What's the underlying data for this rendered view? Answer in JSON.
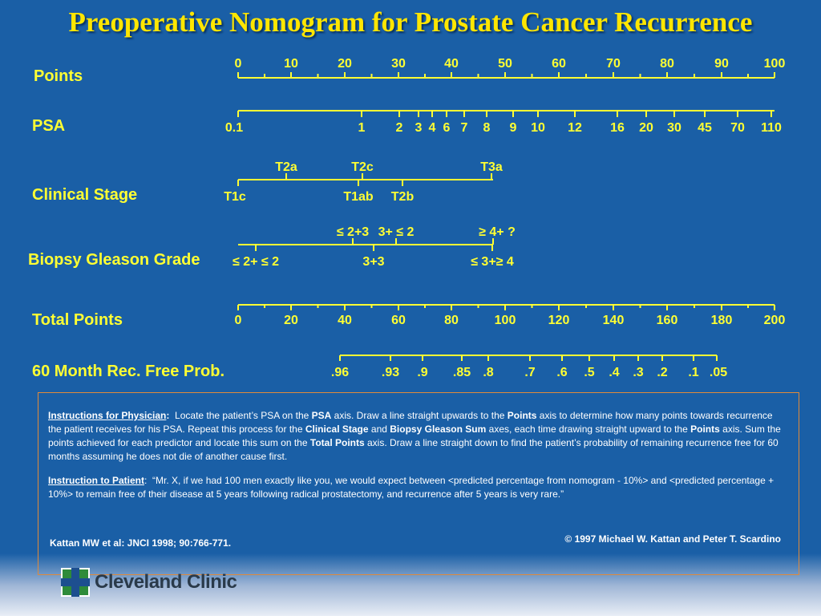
{
  "title": "Preoperative Nomogram for Prostate Cancer Recurrence",
  "chart_data": {
    "type": "nomogram",
    "axes": [
      {
        "label": "Points",
        "ticks": [
          "0",
          "10",
          "20",
          "30",
          "40",
          "50",
          "60",
          "70",
          "80",
          "90",
          "100"
        ]
      },
      {
        "label": "PSA",
        "ticks": [
          "0.1",
          "1",
          "2",
          "3",
          "4",
          "6",
          "7",
          "8",
          "9",
          "10",
          "12",
          "16",
          "20",
          "30",
          "45",
          "70",
          "110"
        ]
      },
      {
        "label": "Clinical Stage",
        "ticks_above": [
          "T2a",
          "T2c",
          "T3a"
        ],
        "ticks_below": [
          "T1c",
          "T1ab",
          "T2b"
        ]
      },
      {
        "label": "Biopsy Gleason Grade",
        "ticks_above": [
          "≤ 2+3",
          "3+ ≤ 2",
          "≥ 4+ ?"
        ],
        "ticks_below": [
          "≤ 2+ ≤ 2",
          "3+3",
          "≤ 3+≥ 4"
        ]
      },
      {
        "label": "Total Points",
        "ticks": [
          "0",
          "20",
          "40",
          "60",
          "80",
          "100",
          "120",
          "140",
          "160",
          "180",
          "200"
        ]
      },
      {
        "label": "60 Month Rec. Free Prob.",
        "ticks": [
          ".96",
          ".93",
          ".9",
          ".85",
          ".8",
          ".7",
          ".6",
          ".5",
          ".4",
          ".3",
          ".2",
          ".1",
          ".05"
        ]
      }
    ]
  },
  "instructions": {
    "physician_heading": "Instructions for Physician",
    "physician_p1": "Locate the patient’s PSA on the",
    "physician_b1": "PSA",
    "physician_p2": "axis.  Draw a line straight upwards to the",
    "physician_b2": "Points",
    "physician_p3": "axis to determine how many points towards recurrence the patient receives for his PSA.  Repeat this process for the",
    "physician_b3": "Clinical Stage",
    "physician_p4": "and",
    "physician_b4": "Biopsy Gleason Sum",
    "physician_p5": "axes, each time drawing straight upward to the",
    "physician_b5": "Points",
    "physician_p6": "axis.  Sum the points achieved for each predictor and locate this sum on the",
    "physician_b6": "Total Points",
    "physician_p7": "axis.  Draw a line straight down to find the patient’s probability of remaining recurrence free for 60 months assuming he does not die of another cause first.",
    "patient_heading": "Instruction to Patient",
    "patient_text": "“Mr. X, if we had 100 men exactly like you, we would expect between <predicted percentage from nomogram - 10%> and <predicted percentage + 10%> to remain free of their disease at 5 years following radical prostatectomy, and recurrence after 5 years is very rare.”"
  },
  "citation": "Kattan MW et al: JNCI 1998; 90:766-771.",
  "copyright": "©  1997   Michael W. Kattan and Peter T. Scardino",
  "logo_text": "Cleveland Clinic",
  "colors": {
    "background": "#1a5fa6",
    "axis": "#ffff33",
    "title": "#ffe600",
    "box_border": "#e08a3a",
    "logo_green": "#2e8b3a"
  }
}
